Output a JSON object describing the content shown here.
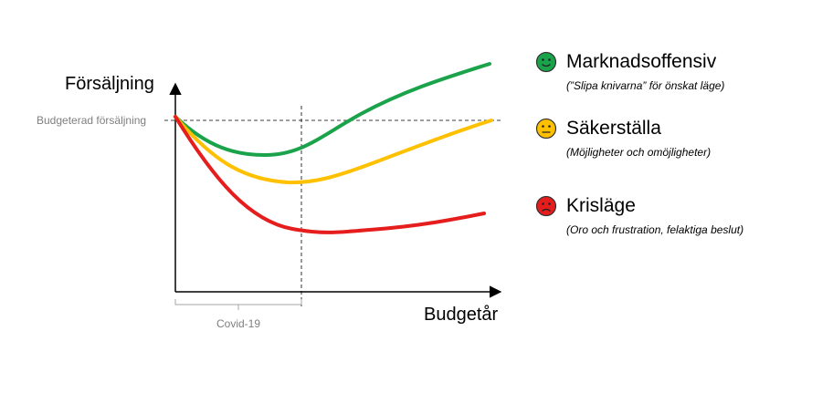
{
  "chart": {
    "y_axis_label": "Försäljning",
    "x_axis_label": "Budgetår",
    "reference_line_label": "Budgeterad försäljning",
    "period_label": "Covid-19"
  },
  "colors": {
    "green": "#1aa34a",
    "yellow": "#ffc000",
    "red": "#e51d1d"
  },
  "legend": [
    {
      "icon": "smiley-happy-icon",
      "color": "#1aa34a",
      "title": "Marknadsoffensiv",
      "subtitle": "(”Slipa knivarna” för önskat läge)"
    },
    {
      "icon": "smiley-neutral-icon",
      "color": "#ffc000",
      "title": "Säkerställa",
      "subtitle": "(Möjligheter och omöjligheter)"
    },
    {
      "icon": "smiley-sad-icon",
      "color": "#e51d1d",
      "title": "Krisläge",
      "subtitle": "(Oro och frustration, felaktiga beslut)"
    }
  ]
}
